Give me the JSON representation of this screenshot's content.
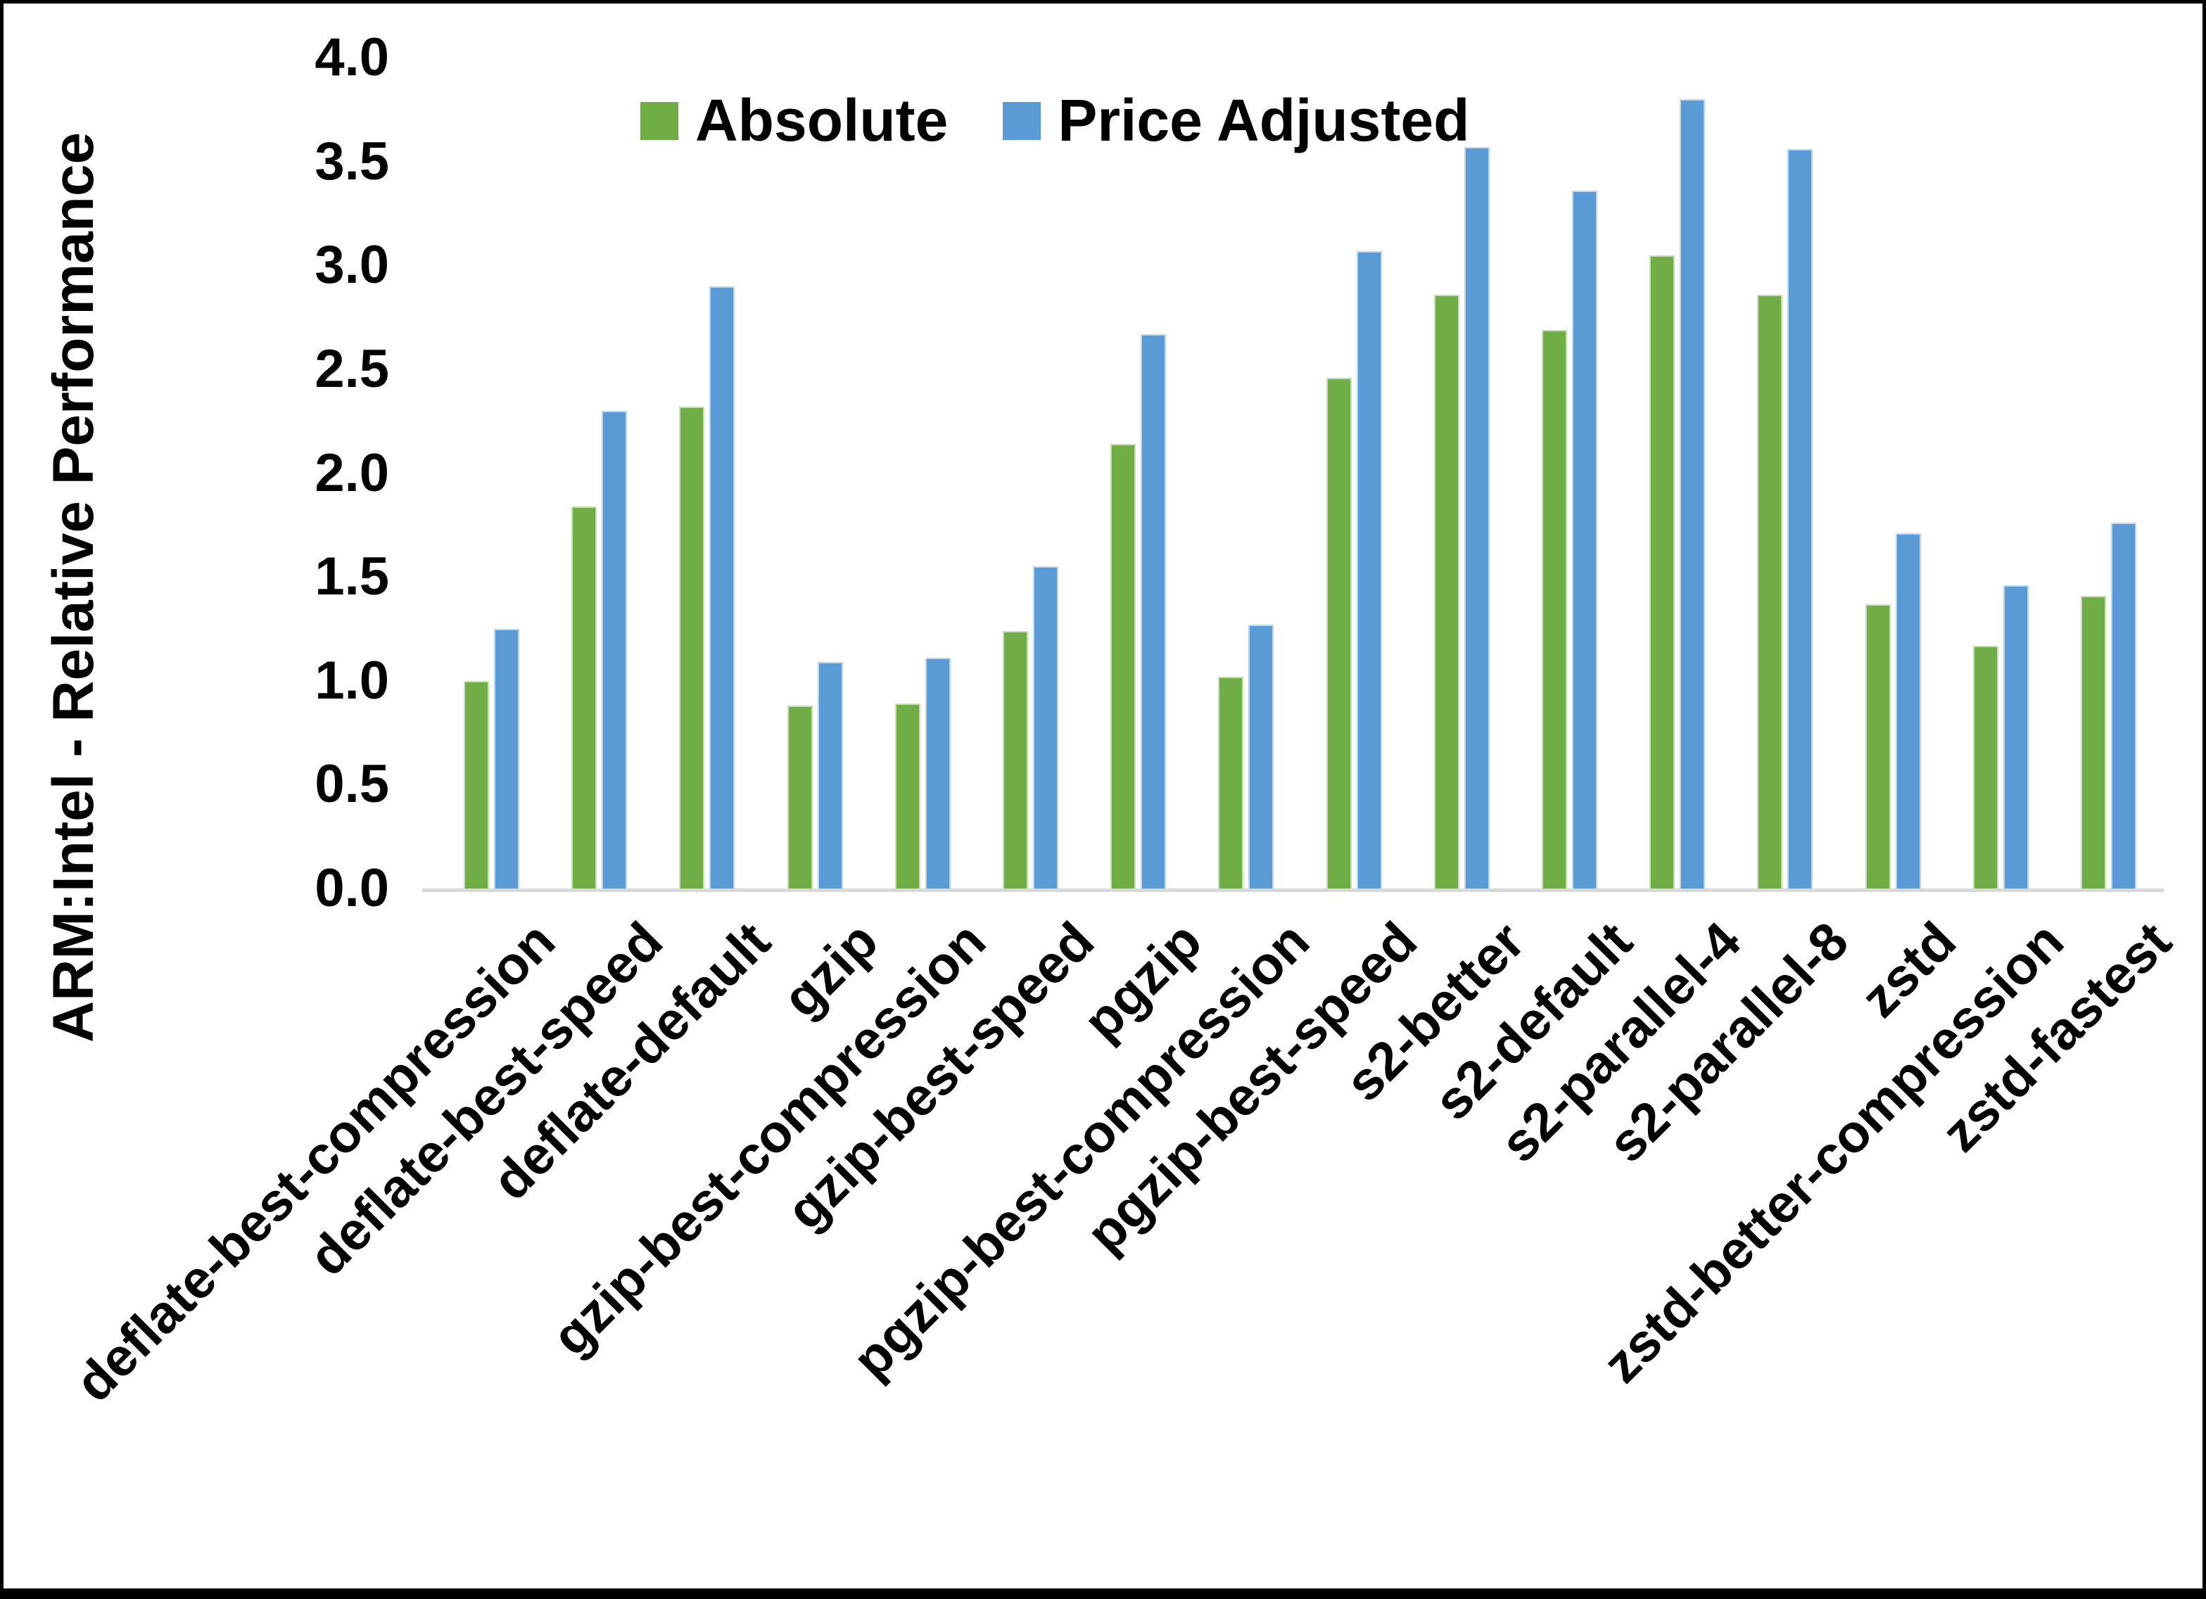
{
  "chart_data": {
    "type": "bar",
    "title": "",
    "ylabel": "ARM:Intel - Relative Performance",
    "xlabel": "",
    "ylim": [
      0.0,
      4.0
    ],
    "ytick_step": 0.5,
    "yticks": [
      "0.0",
      "0.5",
      "1.0",
      "1.5",
      "2.0",
      "2.5",
      "3.0",
      "3.5",
      "4.0"
    ],
    "grid": "off",
    "legend_position": "top",
    "categories": [
      "deflate-best-compression",
      "deflate-best-speed",
      "deflate-default",
      "gzip",
      "gzip-best-compression",
      "gzip-best-speed",
      "pgzip",
      "pgzip-best-compression",
      "pgzip-best-speed",
      "s2-better",
      "s2-default",
      "s2-parallel-4",
      "s2-parallel-8",
      "zstd",
      "zstd-better-compression",
      "zstd-fastest"
    ],
    "series": [
      {
        "name": "Absolute",
        "color": "#70AD47",
        "border_color": "#c6e0b4",
        "values": [
          1.0,
          1.84,
          2.32,
          0.88,
          0.89,
          1.24,
          2.14,
          1.02,
          2.46,
          2.86,
          2.69,
          3.05,
          2.86,
          1.37,
          1.17,
          1.41
        ]
      },
      {
        "name": "Price Adjusted",
        "color": "#5B9BD5",
        "border_color": "#bdd7ee",
        "values": [
          1.25,
          2.3,
          2.9,
          1.09,
          1.11,
          1.55,
          2.67,
          1.27,
          3.07,
          3.57,
          3.36,
          3.8,
          3.56,
          1.71,
          1.46,
          1.76
        ]
      }
    ],
    "axis_line_color": "#d9d9d9",
    "frame_color": "#000000"
  }
}
